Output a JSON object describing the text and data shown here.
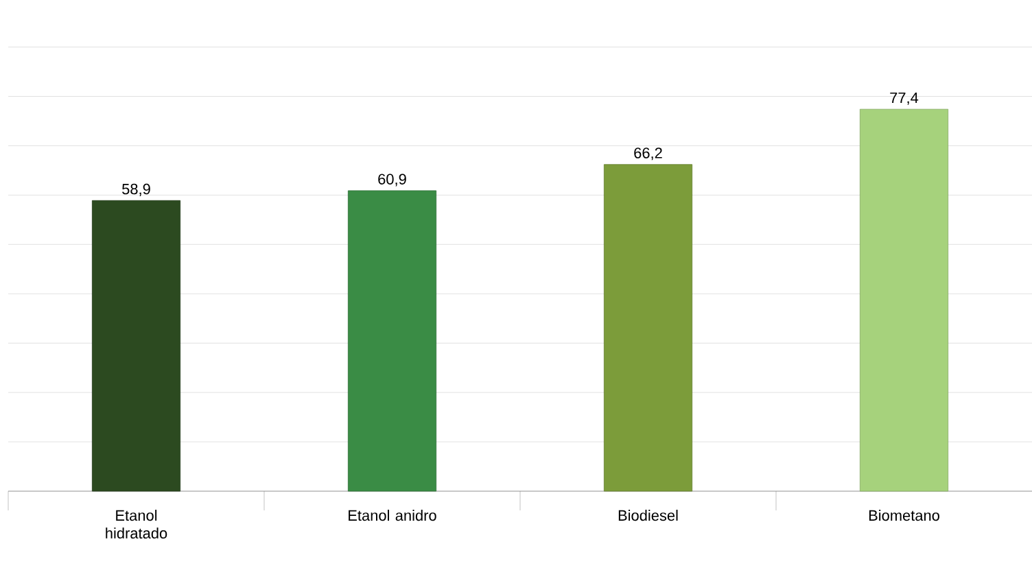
{
  "chart_data": {
    "type": "bar",
    "categories": [
      "Etanol hidratado",
      "Etanol anidro",
      "Biodiesel",
      "Biometano"
    ],
    "values": [
      58.9,
      60.9,
      66.2,
      77.4
    ],
    "value_labels": [
      "58,9",
      "60,9",
      "66,2",
      "77,4"
    ],
    "colors": [
      "#2c4a20",
      "#3a8c45",
      "#7c9c3a",
      "#a6d27c"
    ],
    "grid": "y",
    "tick_labels": "x"
  }
}
